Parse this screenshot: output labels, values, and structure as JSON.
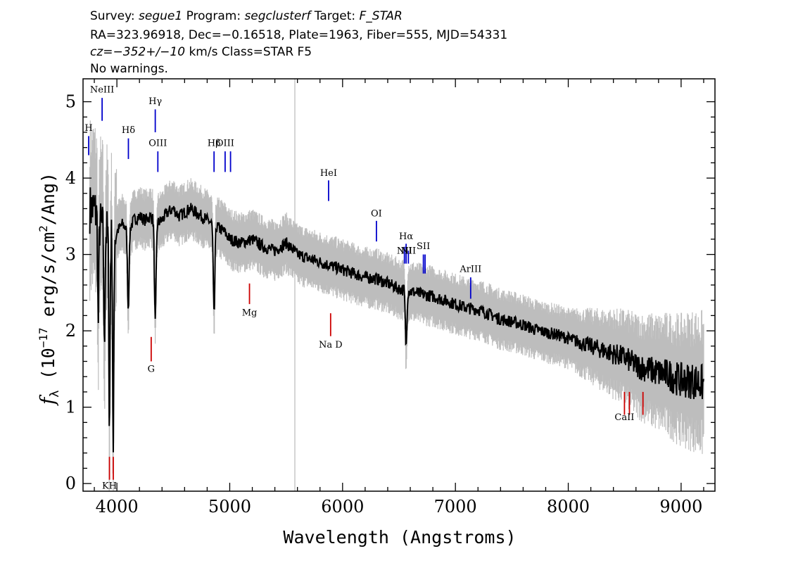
{
  "header": {
    "line1": [
      {
        "text": "Survey: ",
        "italic": false
      },
      {
        "text": "segue1",
        "italic": true
      },
      {
        "text": " Program: ",
        "italic": false
      },
      {
        "text": "segclusterf",
        "italic": true
      },
      {
        "text": " Target: ",
        "italic": false
      },
      {
        "text": "F_STAR",
        "italic": true
      }
    ],
    "line2": "RA=323.96918, Dec=−0.16518, Plate=1963, Fiber=555, MJD=54331",
    "line3": [
      {
        "text": "cz=−352+/−10",
        "italic": true
      },
      {
        "text": " km/s Class=STAR F5",
        "italic": false
      }
    ],
    "line4": "No warnings."
  },
  "colors": {
    "flux": "#000000",
    "error": "#bdbdbd",
    "emission": "#0000cc",
    "absorption": "#cc0000",
    "skyline": "#c8c8c8"
  },
  "chart_data": {
    "type": "line",
    "xlabel": "Wavelength (Angstroms)",
    "ylabel_parts": [
      "f",
      "λ",
      " (10",
      "−17",
      " erg/s/cm",
      "2",
      "/Ang)"
    ],
    "xlim": [
      3700,
      9300
    ],
    "ylim": [
      -0.1,
      5.3
    ],
    "xticks": [
      4000,
      5000,
      6000,
      7000,
      8000,
      9000
    ],
    "yticks": [
      0,
      1,
      2,
      3,
      4,
      5
    ],
    "grid": false,
    "sky_line_x": 5577,
    "series": [
      {
        "role": "smoothed flux",
        "x": [
          3800,
          3850,
          3900,
          3950,
          4000,
          4050,
          4100,
          4150,
          4200,
          4250,
          4300,
          4350,
          4400,
          4450,
          4500,
          4550,
          4600,
          4650,
          4700,
          4750,
          4800,
          4850,
          4900,
          4950,
          5000,
          5100,
          5200,
          5300,
          5400,
          5500,
          5600,
          5700,
          5800,
          5900,
          6000,
          6100,
          6200,
          6300,
          6400,
          6500,
          6600,
          6700,
          6800,
          6900,
          7000,
          7100,
          7200,
          7300,
          7400,
          7500,
          7600,
          7700,
          7800,
          7900,
          8000,
          8100,
          8200,
          8300,
          8400,
          8500,
          8600,
          8700,
          8800,
          8900,
          9000,
          9100,
          9200
        ],
        "y": [
          3.6,
          3.4,
          3.3,
          3.2,
          3.3,
          3.4,
          3.3,
          3.45,
          3.5,
          3.45,
          3.5,
          3.4,
          3.45,
          3.55,
          3.6,
          3.5,
          3.55,
          3.6,
          3.55,
          3.5,
          3.45,
          3.4,
          3.35,
          3.3,
          3.2,
          3.15,
          3.2,
          3.1,
          3.05,
          3.15,
          3.0,
          2.95,
          2.9,
          2.85,
          2.8,
          2.75,
          2.7,
          2.68,
          2.62,
          2.55,
          2.52,
          2.48,
          2.45,
          2.4,
          2.35,
          2.3,
          2.28,
          2.22,
          2.15,
          2.12,
          2.08,
          2.02,
          1.98,
          1.95,
          1.9,
          1.85,
          1.8,
          1.75,
          1.7,
          1.65,
          1.55,
          1.5,
          1.45,
          1.42,
          1.35,
          1.35,
          1.3
        ]
      },
      {
        "role": "absorption dips",
        "points": [
          {
            "x": 3835,
            "y": 2.1
          },
          {
            "x": 3889,
            "y": 1.7
          },
          {
            "x": 3934,
            "y": 0.7
          },
          {
            "x": 3968,
            "y": 0.3
          },
          {
            "x": 4101,
            "y": 2.3
          },
          {
            "x": 4340,
            "y": 2.1
          },
          {
            "x": 4861,
            "y": 2.2
          },
          {
            "x": 6563,
            "y": 1.8
          }
        ]
      }
    ],
    "emission_lines": [
      {
        "label": "H",
        "x": 3750,
        "tick": [
          4.3,
          4.55
        ],
        "label_y": 4.62
      },
      {
        "label": "NeIII",
        "x": 3869,
        "tick": [
          4.75,
          5.05
        ],
        "label_y": 5.12
      },
      {
        "label": "Hδ",
        "x": 4102,
        "tick": [
          4.25,
          4.52
        ],
        "label_y": 4.59
      },
      {
        "label": "Hγ",
        "x": 4340,
        "tick": [
          4.6,
          4.9
        ],
        "label_y": 4.97
      },
      {
        "label": "OIII",
        "x": 4363,
        "tick": [
          4.08,
          4.35
        ],
        "label_y": 4.42
      },
      {
        "label": "Hβ",
        "x": 4861,
        "tick": [
          4.08,
          4.35
        ],
        "label_y": 4.42
      },
      {
        "label": "OIII",
        "x": 4959,
        "tick": [
          4.08,
          4.35
        ],
        "label_y": 4.42
      },
      {
        "label": "",
        "x": 5007,
        "tick": [
          4.08,
          4.35
        ],
        "label_y": 4.42
      },
      {
        "label": "HeI",
        "x": 5876,
        "tick": [
          3.7,
          3.97
        ],
        "label_y": 4.03
      },
      {
        "label": "OI",
        "x": 6300,
        "tick": [
          3.17,
          3.44
        ],
        "label_y": 3.5
      },
      {
        "label": "NII",
        "x": 6548,
        "tick": [
          2.88,
          3.1
        ],
        "label_y": 3.01
      },
      {
        "label": "Hα",
        "x": 6563,
        "tick": [
          2.88,
          3.14
        ],
        "label_y": 3.2
      },
      {
        "label": "NII",
        "x": 6583,
        "tick": [
          2.88,
          3.05
        ],
        "label_y": 3.01
      },
      {
        "label": "SII",
        "x": 6716,
        "tick": [
          2.75,
          3.0
        ],
        "label_y": 3.07
      },
      {
        "label": "",
        "x": 6731,
        "tick": [
          2.75,
          3.0
        ],
        "label_y": 3.07
      },
      {
        "label": "ArIII",
        "x": 7135,
        "tick": [
          2.42,
          2.7
        ],
        "label_y": 2.77
      }
    ],
    "absorption_lines": [
      {
        "label": "KH",
        "x": 3934,
        "tick": [
          0.05,
          0.35
        ],
        "label_y": -0.07
      },
      {
        "label": "",
        "x": 3968,
        "tick": [
          0.05,
          0.35
        ],
        "label_y": -0.07
      },
      {
        "label": "G",
        "x": 4304,
        "tick": [
          1.6,
          1.92
        ],
        "label_y": 1.46
      },
      {
        "label": "Mg",
        "x": 5175,
        "tick": [
          2.35,
          2.62
        ],
        "label_y": 2.2
      },
      {
        "label": "Na D",
        "x": 5894,
        "tick": [
          1.93,
          2.23
        ],
        "label_y": 1.78
      },
      {
        "label": "CaII",
        "x": 8498,
        "tick": [
          0.9,
          1.2
        ],
        "label_y": 0.83
      },
      {
        "label": "",
        "x": 8542,
        "tick": [
          0.9,
          1.2
        ],
        "label_y": 0.83
      },
      {
        "label": "",
        "x": 8662,
        "tick": [
          0.9,
          1.2
        ],
        "label_y": 0.83
      }
    ]
  }
}
